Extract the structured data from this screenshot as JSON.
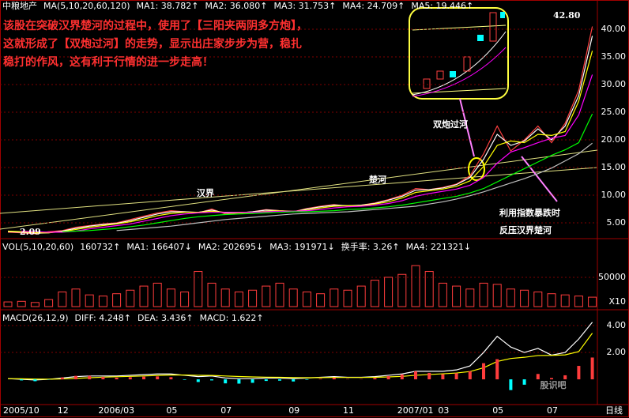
{
  "chart_data": [
    {
      "type": "line",
      "title": "中粮地产",
      "subtitle": "MA(5,10,20,60,120)",
      "ylim": [
        2.43,
        42.43
      ],
      "yticks": [
        {
          "value": 40,
          "label": "40.00"
        },
        {
          "value": 35,
          "label": "35.00"
        },
        {
          "value": 30,
          "label": "30.00"
        },
        {
          "value": 25,
          "label": "25.00"
        },
        {
          "value": 20,
          "label": "20.00"
        },
        {
          "value": 15,
          "label": "15.00"
        },
        {
          "value": 10,
          "label": "10.00"
        },
        {
          "value": 5,
          "label": "5.00"
        }
      ],
      "grid": true,
      "series": [
        {
          "color": "#ff4040",
          "values": [
            3.3,
            3.2,
            3.0,
            3.4,
            3.6,
            4.2,
            4.5,
            4.8,
            5.0,
            5.6,
            6.2,
            6.8,
            7.2,
            7.0,
            6.8,
            7.5,
            6.6,
            6.8,
            7.0,
            7.4,
            7.2,
            7.0,
            7.6,
            8.0,
            8.3,
            8.0,
            8.2,
            8.6,
            9.2,
            10.0,
            11.2,
            11.0,
            11.4,
            12.0,
            13.5,
            17.5,
            22.5,
            18.0,
            20.0,
            22.5,
            19.5,
            23.0,
            29.0,
            40.5
          ]
        },
        {
          "name": "MA1: 38.782↑",
          "color": "#ffffff",
          "values": [
            3.4,
            3.3,
            3.1,
            3.2,
            3.5,
            4.0,
            4.4,
            4.7,
            4.9,
            5.4,
            6.0,
            6.6,
            7.0,
            7.0,
            6.9,
            7.3,
            6.8,
            6.8,
            7.0,
            7.3,
            7.2,
            7.0,
            7.5,
            7.9,
            8.2,
            8.1,
            8.2,
            8.5,
            9.1,
            9.8,
            10.9,
            11.0,
            11.3,
            11.9,
            13.2,
            16.5,
            21.0,
            19.0,
            19.8,
            22.0,
            20.0,
            22.5,
            28.0,
            38.8
          ]
        },
        {
          "name": "MA2: 36.080↑",
          "color": "#ffff00",
          "values": [
            3.5,
            3.4,
            3.2,
            3.2,
            3.4,
            3.8,
            4.2,
            4.5,
            4.8,
            5.2,
            5.7,
            6.3,
            6.7,
            6.9,
            6.9,
            7.1,
            6.9,
            6.8,
            6.9,
            7.1,
            7.2,
            7.1,
            7.3,
            7.7,
            8.0,
            8.1,
            8.1,
            8.4,
            8.8,
            9.5,
            10.5,
            10.8,
            11.1,
            11.6,
            12.6,
            15.2,
            19.0,
            19.8,
            19.5,
            21.0,
            20.8,
            21.5,
            27.0,
            36.1
          ]
        },
        {
          "name": "MA3: 31.753↑",
          "color": "#ff00ff",
          "values": [
            null,
            3.5,
            3.4,
            3.3,
            3.3,
            3.5,
            3.9,
            4.2,
            4.5,
            4.8,
            5.3,
            5.8,
            6.3,
            6.6,
            6.8,
            6.9,
            6.9,
            6.9,
            6.9,
            7.0,
            7.1,
            7.1,
            7.2,
            7.4,
            7.7,
            7.9,
            8.0,
            8.2,
            8.5,
            9.0,
            9.8,
            10.3,
            10.7,
            11.1,
            11.8,
            13.2,
            15.8,
            17.8,
            18.6,
            19.5,
            20.3,
            20.8,
            24.5,
            31.8
          ]
        },
        {
          "name": "MA4: 24.709↑",
          "color": "#00ff00",
          "values": [
            null,
            null,
            null,
            null,
            3.4,
            3.5,
            3.6,
            3.8,
            4.0,
            4.3,
            4.6,
            5.0,
            5.4,
            5.8,
            6.1,
            6.3,
            6.5,
            6.6,
            6.7,
            6.8,
            6.9,
            7.0,
            7.0,
            7.1,
            7.2,
            7.4,
            7.5,
            7.7,
            7.9,
            8.2,
            8.6,
            9.0,
            9.4,
            9.8,
            10.4,
            11.2,
            12.4,
            13.6,
            14.8,
            16.0,
            17.2,
            18.2,
            19.5,
            24.7
          ]
        },
        {
          "name": "MA5: 19.446↑",
          "color": "#c0c0c0",
          "values": [
            null,
            null,
            null,
            null,
            null,
            null,
            null,
            null,
            3.6,
            3.8,
            4.0,
            4.2,
            4.4,
            4.7,
            5.0,
            5.3,
            5.6,
            5.8,
            6.0,
            6.2,
            6.4,
            6.6,
            6.7,
            6.8,
            6.9,
            7.0,
            7.2,
            7.4,
            7.6,
            7.8,
            8.0,
            8.4,
            8.8,
            9.3,
            9.9,
            10.6,
            11.4,
            12.2,
            13.0,
            13.9,
            14.9,
            16.2,
            17.5,
            19.4
          ]
        }
      ],
      "annotations": [
        "该股在突破汉界楚河的过程中，使用了【三阳夹两阴多方炮】，这就形成了【双炮过河】的走势，显示出庄家步步为营，稳扎稳打的作风，这有利于行情的进一步走高！",
        "汉界",
        "楚河",
        "双炮过河",
        "利用指数暴跌时",
        "反压汉界楚河",
        "42.80",
        "2.09"
      ]
    },
    {
      "type": "bar",
      "title": "VOL(5,10,20,60)",
      "header_items": [
        {
          "text": "160732↑",
          "color": "#ffffff"
        },
        {
          "text": "MA1: 166407↓",
          "color": "#ffffff"
        },
        {
          "text": "MA2: 202695↓",
          "color": "#ff00ff"
        },
        {
          "text": "MA3: 191971↓",
          "color": "#00ff00"
        },
        {
          "text": "换手率: 3.26↑",
          "color": "#ffffff"
        },
        {
          "text": "MA4: 221321↓",
          "color": "#4060ff"
        }
      ],
      "ylim": [
        0,
        112000
      ],
      "yticks": [
        50000
      ],
      "unit": "X10",
      "grid": true,
      "color": "#ff3c3c",
      "values": [
        8000,
        9000,
        7000,
        12000,
        25000,
        30000,
        20000,
        18000,
        22000,
        28000,
        35000,
        40000,
        30000,
        25000,
        60000,
        40000,
        30000,
        25000,
        28000,
        35000,
        40000,
        30000,
        25000,
        22000,
        30000,
        28000,
        35000,
        45000,
        50000,
        55000,
        70000,
        60000,
        40000,
        35000,
        30000,
        40000,
        38000,
        30000,
        28000,
        25000,
        22000,
        20000,
        18000,
        16073
      ]
    },
    {
      "type": "macd",
      "title": "MACD(26,12,9)",
      "ylim": [
        -1.76,
        5
      ],
      "yticks": [
        {
          "value": 4,
          "label": "4.00"
        },
        {
          "value": 2,
          "label": "2.00"
        }
      ],
      "grid": true,
      "categories": [
        "2005/10",
        null,
        null,
        null,
        "12",
        null,
        null,
        "2006/03",
        null,
        null,
        null,
        null,
        "05",
        null,
        null,
        null,
        "07",
        null,
        null,
        null,
        null,
        "09",
        null,
        null,
        null,
        "11",
        null,
        null,
        null,
        "2007/01",
        null,
        null,
        "03",
        null,
        null,
        null,
        "05",
        null,
        null,
        null,
        "07",
        null,
        null,
        null
      ],
      "period": "日线",
      "up_color": "#ff3c3c",
      "down_color": "#00ffff",
      "series": [
        {
          "name": "DIFF: 4.248↑",
          "color": "#ffffff",
          "values": [
            0.05,
            0.0,
            -0.05,
            0.0,
            0.1,
            0.2,
            0.25,
            0.25,
            0.25,
            0.3,
            0.35,
            0.4,
            0.4,
            0.3,
            0.2,
            0.25,
            0.1,
            0.05,
            0.05,
            0.1,
            0.1,
            0.05,
            0.1,
            0.15,
            0.2,
            0.15,
            0.15,
            0.2,
            0.3,
            0.4,
            0.6,
            0.6,
            0.6,
            0.7,
            1.0,
            2.0,
            3.2,
            2.4,
            2.0,
            2.3,
            1.8,
            2.0,
            3.0,
            4.248
          ]
        },
        {
          "name": "DEA: 3.436↑",
          "color": "#ffff00",
          "values": [
            0.05,
            0.04,
            0.02,
            0.01,
            0.03,
            0.07,
            0.12,
            0.16,
            0.19,
            0.22,
            0.25,
            0.29,
            0.32,
            0.32,
            0.3,
            0.29,
            0.25,
            0.21,
            0.18,
            0.16,
            0.15,
            0.13,
            0.12,
            0.13,
            0.14,
            0.14,
            0.14,
            0.15,
            0.18,
            0.22,
            0.3,
            0.36,
            0.41,
            0.47,
            0.58,
            0.86,
            1.33,
            1.55,
            1.64,
            1.77,
            1.78,
            1.82,
            2.06,
            3.436
          ]
        },
        {
          "name": "MACD: 1.622↑",
          "color": "#ff00ff",
          "bars": true,
          "values": [
            0,
            -0.08,
            -0.14,
            -0.02,
            0.14,
            0.26,
            0.26,
            0.18,
            0.12,
            0.16,
            0.2,
            0.22,
            0.16,
            -0.04,
            -0.2,
            -0.08,
            -0.3,
            -0.32,
            -0.26,
            -0.12,
            -0.1,
            -0.16,
            -0.04,
            0.04,
            0.12,
            0.02,
            0.02,
            0.1,
            0.24,
            0.36,
            0.6,
            0.48,
            0.38,
            0.46,
            0.6,
            1.2,
            1.5,
            -0.8,
            -0.4,
            0.4,
            0.1,
            0.3,
            1.0,
            1.622
          ]
        }
      ]
    }
  ],
  "watermark": "股识吧"
}
